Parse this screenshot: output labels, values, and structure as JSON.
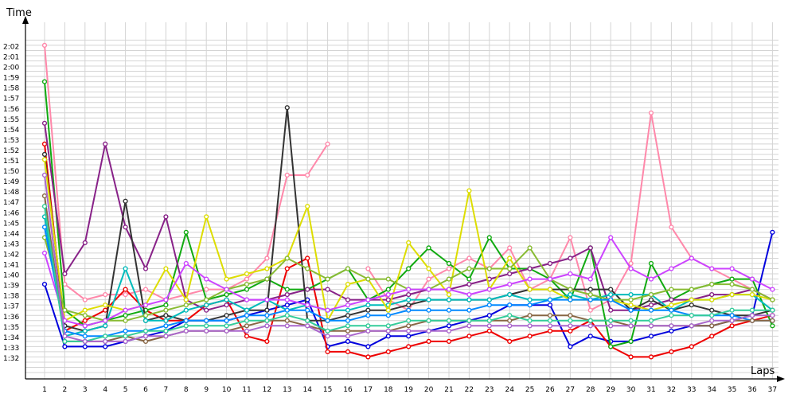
{
  "chart_data": {
    "type": "line",
    "ylabel": "Time",
    "xlabel": "Laps",
    "x": [
      1,
      2,
      3,
      4,
      5,
      6,
      7,
      8,
      9,
      10,
      11,
      12,
      13,
      14,
      15,
      16,
      17,
      18,
      19,
      20,
      21,
      22,
      23,
      24,
      25,
      26,
      27,
      28,
      29,
      30,
      31,
      32,
      33,
      34,
      35,
      36,
      37
    ],
    "y_tick_labels": [
      "1:32",
      "1:33",
      "1:34",
      "1:35",
      "1:36",
      "1:37",
      "1:38",
      "1:39",
      "1:40",
      "1:41",
      "1:42",
      "1:43",
      "1:44",
      "1:45",
      "1:46",
      "1:47",
      "1:48",
      "1:49",
      "1:50",
      "1:51",
      "1:52",
      "1:53",
      "1:54",
      "1:55",
      "1:56",
      "1:57",
      "1:58",
      "1:59",
      "2:00",
      "2:01",
      "2:02"
    ],
    "ylim_seconds": [
      91,
      123
    ],
    "grid": true,
    "legend": "none",
    "series": [
      {
        "color": "#ff88aa",
        "values": [
          122.5,
          99.5,
          98,
          98.5,
          98.5,
          99,
          98,
          98.5,
          99,
          99,
          100,
          102,
          110,
          110,
          113,
          null,
          101,
          98,
          97,
          100,
          101,
          102,
          101,
          103,
          99,
          100,
          104,
          97,
          98,
          101.5,
          116,
          105,
          102,
          101,
          100,
          99,
          98
        ]
      },
      {
        "color": "#0000dd",
        "values": [
          99.5,
          93.5,
          93.5,
          93.5,
          94,
          94.5,
          95,
          96,
          96,
          96,
          96.5,
          97,
          97.5,
          98,
          93.5,
          94,
          93.5,
          94.5,
          94.5,
          95,
          95.5,
          96,
          96.5,
          97.5,
          97.5,
          97.5,
          93.5,
          94.5,
          94,
          94,
          94.5,
          95,
          95.5,
          95.5,
          96,
          96.5,
          104.5
        ]
      },
      {
        "color": "#ee0000",
        "values": [
          113,
          95,
          96,
          97,
          99,
          97,
          96,
          96,
          97.5,
          98,
          94.5,
          94,
          101,
          102,
          93,
          93,
          92.5,
          93,
          93.5,
          94,
          94,
          94.5,
          95,
          94,
          94.5,
          95,
          95,
          96,
          93.5,
          92.5,
          92.5,
          93,
          93.5,
          94.5,
          95.5,
          96,
          96.5
        ]
      },
      {
        "color": "#11aa11",
        "values": [
          119,
          97,
          95.5,
          96,
          96.5,
          97,
          97.5,
          104.5,
          98,
          98.5,
          99,
          100,
          99,
          99,
          100,
          101,
          98,
          99,
          101,
          103,
          101.5,
          100,
          104,
          101,
          101,
          100,
          98,
          103,
          93.5,
          94,
          101.5,
          98,
          99,
          99.5,
          100,
          100,
          95.5
        ]
      },
      {
        "color": "#882288",
        "values": [
          115,
          100.5,
          103.5,
          113,
          105,
          101,
          106,
          98,
          97,
          97.5,
          98,
          98,
          98.5,
          99,
          99,
          98,
          98,
          98,
          98.5,
          99,
          99,
          99.5,
          100,
          100.5,
          101,
          101.5,
          102,
          103,
          97,
          97,
          97.5,
          98,
          98,
          98.5,
          98.5,
          99,
          98
        ]
      },
      {
        "color": "#333333",
        "values": [
          112,
          95.5,
          95,
          95.5,
          107.5,
          96,
          96.5,
          96,
          96,
          96.5,
          97,
          97,
          116.5,
          96,
          96,
          96.5,
          97,
          97,
          97.5,
          98,
          98,
          98,
          98,
          98.5,
          99,
          99,
          99,
          99,
          99,
          97,
          98,
          97,
          97.5,
          97,
          96.5,
          96.5,
          97
        ]
      },
      {
        "color": "#00bbbb",
        "values": [
          106,
          94.5,
          95,
          95.5,
          101,
          96,
          96,
          97,
          97.5,
          98,
          97,
          98,
          97,
          97.5,
          97,
          97,
          97.5,
          97.5,
          98,
          98,
          98,
          98,
          98,
          98.5,
          98,
          98,
          98.5,
          98,
          98.5,
          98.5,
          98.5,
          97,
          98,
          98,
          98.5,
          98.5,
          97
        ]
      },
      {
        "color": "#dddd00",
        "values": [
          111.5,
          96,
          97,
          97.5,
          97,
          97.5,
          101,
          98,
          106,
          100,
          100.5,
          101,
          102,
          107,
          96,
          99.5,
          100,
          97,
          103.5,
          101,
          98.5,
          108.5,
          99,
          102,
          99,
          99,
          98,
          98,
          98,
          97.5,
          97,
          97.5,
          98,
          98,
          98.5,
          98.5,
          98
        ]
      },
      {
        "color": "#88bb33",
        "values": [
          104,
          97,
          96.5,
          96,
          96,
          96.5,
          97,
          97.5,
          98,
          99,
          99.5,
          100,
          102,
          101,
          100,
          101,
          100,
          100,
          99,
          99,
          100,
          101,
          101,
          101,
          103,
          100,
          99,
          98.5,
          98,
          98,
          98.5,
          99,
          99,
          99.5,
          99.5,
          99,
          98
        ]
      },
      {
        "color": "#cc44ff",
        "values": [
          102.5,
          96,
          95.5,
          96,
          97,
          97.5,
          98,
          101.5,
          100,
          99,
          98,
          98,
          98,
          97.5,
          97,
          97.5,
          98,
          98.5,
          99,
          99,
          99,
          98.5,
          99,
          99.5,
          100,
          100,
          100.5,
          100,
          104,
          101,
          100,
          101,
          102,
          101,
          101,
          100,
          99
        ]
      },
      {
        "color": "#0088ff",
        "values": [
          105,
          95,
          94.5,
          94.5,
          95,
          95,
          95.5,
          96,
          96,
          96,
          96.5,
          96.5,
          97,
          97,
          96,
          96,
          96.5,
          96.5,
          97,
          97,
          97,
          97,
          97.5,
          97.5,
          97.5,
          98,
          98,
          98,
          98,
          97,
          97,
          97,
          96.5,
          96.5,
          96.5,
          96,
          96
        ]
      },
      {
        "color": "#886644",
        "values": [
          108,
          94,
          94,
          94,
          94.5,
          94,
          94.5,
          95,
          95,
          95,
          95.5,
          96,
          96,
          95.5,
          95,
          95,
          95,
          95,
          95.5,
          96,
          96,
          96,
          96,
          96,
          96.5,
          96.5,
          96.5,
          96,
          96,
          95.5,
          95.5,
          95.5,
          95.5,
          95.5,
          96,
          96,
          96
        ]
      },
      {
        "color": "#33cc99",
        "values": [
          107,
          94,
          94,
          94.5,
          94.5,
          95,
          95,
          95.5,
          95.5,
          95.5,
          96,
          96,
          96.5,
          96,
          95,
          95.5,
          95.5,
          95.5,
          96,
          96,
          96,
          96,
          96,
          96.5,
          96,
          96,
          96,
          96,
          96,
          96,
          96,
          96.5,
          96.5,
          96.5,
          97,
          97,
          97
        ]
      },
      {
        "color": "#aa66cc",
        "values": [
          110,
          94.5,
          94,
          94,
          94,
          94.5,
          94.5,
          95,
          95,
          95,
          95,
          95.5,
          95.5,
          95.5,
          94.5,
          94.5,
          95,
          95,
          95,
          95,
          95,
          95.5,
          95.5,
          95.5,
          95.5,
          95.5,
          95.5,
          95.5,
          95.5,
          95.5,
          95.5,
          95.5,
          95.5,
          96,
          96,
          96.5,
          96.5
        ]
      }
    ]
  }
}
